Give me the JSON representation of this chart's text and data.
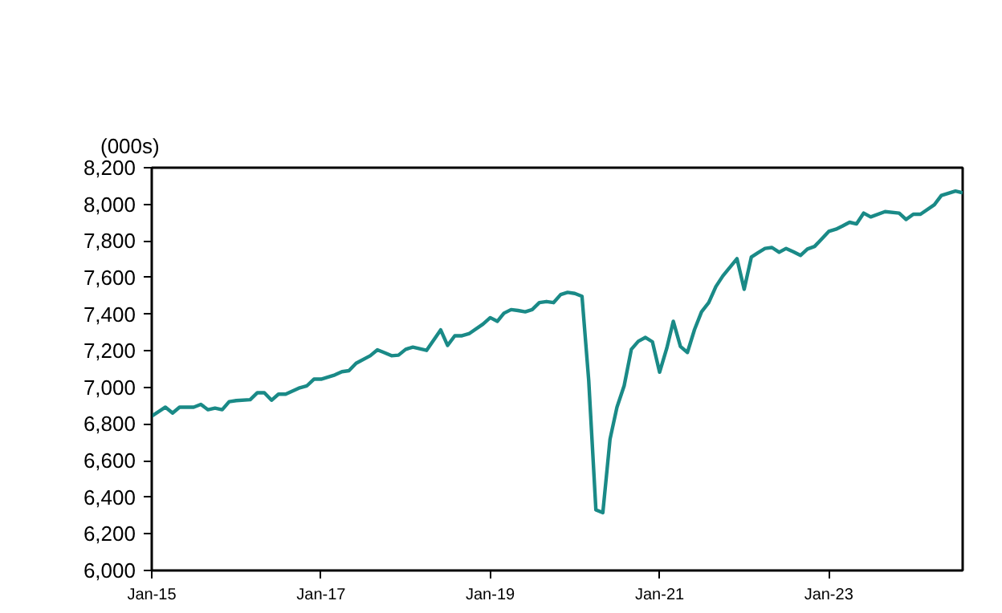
{
  "chart_data": {
    "type": "line",
    "ylabel": "(000s)",
    "x": [
      "2015-01",
      "2015-03",
      "2015-04",
      "2015-05",
      "2015-07",
      "2015-08",
      "2015-09",
      "2015-10",
      "2015-11",
      "2015-12",
      "2016-01",
      "2016-03",
      "2016-04",
      "2016-05",
      "2016-06",
      "2016-07",
      "2016-08",
      "2016-10",
      "2016-11",
      "2016-12",
      "2017-01",
      "2017-03",
      "2017-04",
      "2017-05",
      "2017-06",
      "2017-08",
      "2017-09",
      "2017-10",
      "2017-11",
      "2017-12",
      "2018-01",
      "2018-02",
      "2018-04",
      "2018-06",
      "2018-07",
      "2018-08",
      "2018-09",
      "2018-10",
      "2018-12",
      "2019-01",
      "2019-02",
      "2019-03",
      "2019-04",
      "2019-05",
      "2019-06",
      "2019-07",
      "2019-08",
      "2019-09",
      "2019-10",
      "2019-11",
      "2019-12",
      "2020-01",
      "2020-02",
      "2020-03",
      "2020-04",
      "2020-05",
      "2020-06",
      "2020-07",
      "2020-08",
      "2020-09",
      "2020-10",
      "2020-11",
      "2020-12",
      "2021-01",
      "2021-02",
      "2021-03",
      "2021-04",
      "2021-05",
      "2021-06",
      "2021-07",
      "2021-08",
      "2021-09",
      "2021-10",
      "2021-12",
      "2022-01",
      "2022-02",
      "2022-03",
      "2022-04",
      "2022-05",
      "2022-06",
      "2022-07",
      "2022-08",
      "2022-09",
      "2022-10",
      "2022-11",
      "2023-01",
      "2023-02",
      "2023-03",
      "2023-04",
      "2023-05",
      "2023-06",
      "2023-07",
      "2023-09",
      "2023-11",
      "2023-12",
      "2024-01",
      "2024-02",
      "2024-04",
      "2024-05",
      "2024-07",
      "2024-08"
    ],
    "series": [
      {
        "color": "#1a8a87",
        "values": [
          6843,
          6892,
          6860,
          6892,
          6892,
          6907,
          6878,
          6887,
          6878,
          6922,
          6928,
          6933,
          6971,
          6971,
          6930,
          6963,
          6963,
          6998,
          7009,
          7045,
          7045,
          7068,
          7086,
          7091,
          7132,
          7173,
          7205,
          7190,
          7173,
          7176,
          7208,
          7220,
          7202,
          7314,
          7229,
          7282,
          7282,
          7293,
          7346,
          7381,
          7361,
          7405,
          7425,
          7420,
          7413,
          7425,
          7463,
          7469,
          7463,
          7507,
          7519,
          7513,
          7498,
          7039,
          6331,
          6316,
          6717,
          6892,
          7009,
          7208,
          7252,
          7273,
          7249,
          7083,
          7214,
          7361,
          7223,
          7191,
          7317,
          7413,
          7463,
          7551,
          7609,
          7703,
          7536,
          7712,
          7735,
          7759,
          7764,
          7738,
          7759,
          7741,
          7721,
          7756,
          7770,
          7852,
          7864,
          7881,
          7902,
          7893,
          7952,
          7931,
          7960,
          7952,
          7917,
          7946,
          7946,
          7998,
          8048,
          8072,
          8063
        ]
      }
    ],
    "xlim": [
      "2015-01",
      "2024-08"
    ],
    "xticks": [
      {
        "value": "2015-01",
        "label": "Jan-15"
      },
      {
        "value": "2017-01",
        "label": "Jan-17"
      },
      {
        "value": "2019-01",
        "label": "Jan-19"
      },
      {
        "value": "2021-01",
        "label": "Jan-21"
      },
      {
        "value": "2023-01",
        "label": "Jan-23"
      }
    ],
    "ylim": [
      6000,
      8200
    ],
    "yticks": [
      {
        "value": 6000,
        "label": "6,000"
      },
      {
        "value": 6200,
        "label": "6,200"
      },
      {
        "value": 6400,
        "label": "6,400"
      },
      {
        "value": 6600,
        "label": "6,600"
      },
      {
        "value": 6800,
        "label": "6,800"
      },
      {
        "value": 7000,
        "label": "7,000"
      },
      {
        "value": 7200,
        "label": "7,200"
      },
      {
        "value": 7400,
        "label": "7,400"
      },
      {
        "value": 7600,
        "label": "7,600"
      },
      {
        "value": 7800,
        "label": "7,800"
      },
      {
        "value": 8000,
        "label": "8,000"
      },
      {
        "value": 8200,
        "label": "8,200"
      }
    ],
    "grid": false
  }
}
